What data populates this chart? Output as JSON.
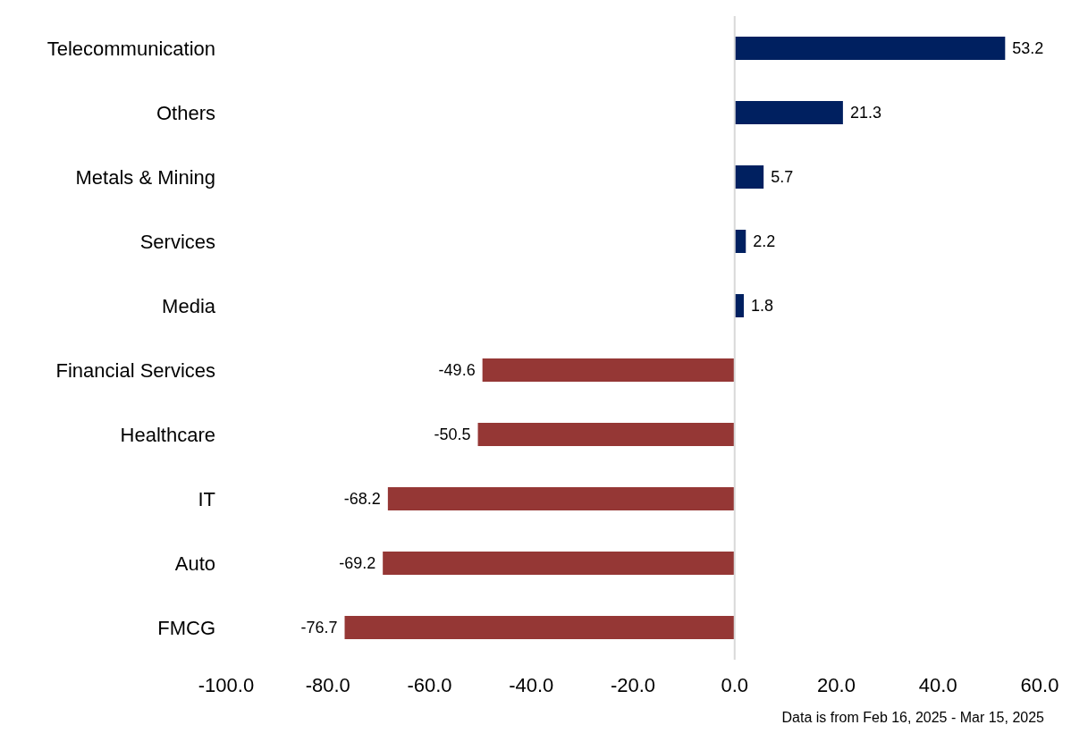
{
  "chart_data": {
    "type": "bar",
    "orientation": "horizontal",
    "categories": [
      "Telecommunication",
      "Others",
      "Metals & Mining",
      "Services",
      "Media",
      "Financial Services",
      "Healthcare",
      "IT",
      "Auto",
      "FMCG"
    ],
    "values": [
      53.2,
      21.3,
      5.7,
      2.2,
      1.8,
      -49.6,
      -50.5,
      -68.2,
      -69.2,
      -76.7
    ],
    "colors": [
      "#002060",
      "#002060",
      "#002060",
      "#002060",
      "#002060",
      "#953735",
      "#953735",
      "#953735",
      "#953735",
      "#953735"
    ],
    "xlim": [
      -100,
      60
    ],
    "xticks": [
      {
        "value": -100,
        "label": "-100.0"
      },
      {
        "value": -80,
        "label": "-80.0"
      },
      {
        "value": -60,
        "label": "-60.0"
      },
      {
        "value": -40,
        "label": "-40.0"
      },
      {
        "value": -20,
        "label": "-20.0"
      },
      {
        "value": 0,
        "label": "0.0"
      },
      {
        "value": 20,
        "label": "20.0"
      },
      {
        "value": 40,
        "label": "40.0"
      },
      {
        "value": 60,
        "label": "60.0"
      }
    ],
    "ref_lines": [
      {
        "axis": "x",
        "value": 0,
        "color": "#d9d9d9"
      }
    ],
    "data_labels": true,
    "grid": false,
    "legend": false,
    "annotations": [
      "Data is from Feb 16, 2025 - Mar 15, 2025"
    ]
  }
}
